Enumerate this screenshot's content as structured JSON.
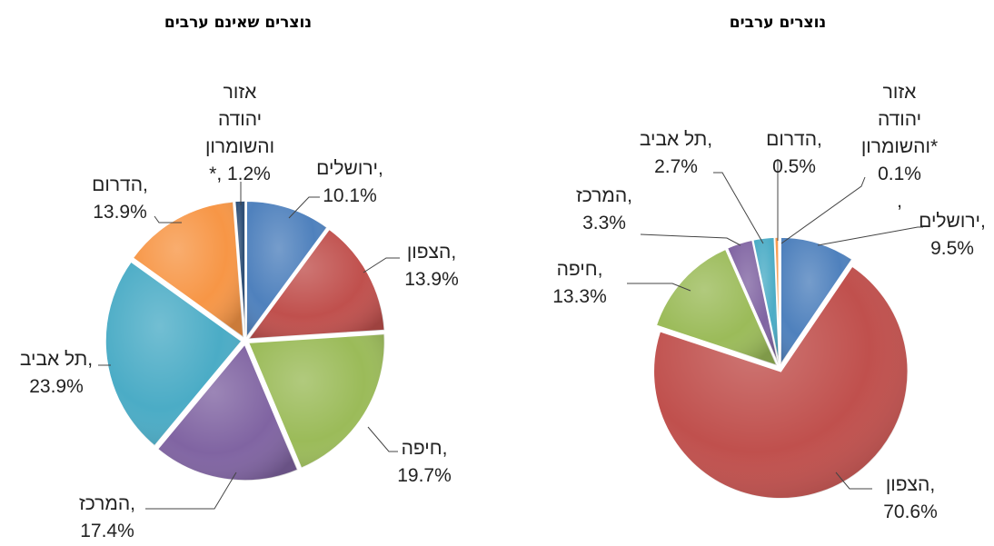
{
  "chart_data": [
    {
      "type": "pie",
      "title": "נוצרים שאינם ערבים",
      "slices": [
        {
          "name": "ירושלים",
          "value": 10.1,
          "label": [
            "ירושלים,",
            "10.1%"
          ],
          "color": "#4f81bd"
        },
        {
          "name": "הצפון",
          "value": 13.9,
          "label": [
            "הצפון,",
            "13.9%"
          ],
          "color": "#c0504d"
        },
        {
          "name": "חיפה",
          "value": 19.7,
          "label": [
            "חיפה,",
            "19.7%"
          ],
          "color": "#9bbb59"
        },
        {
          "name": "המרכז",
          "value": 17.4,
          "label": [
            "המרכז,",
            "17.4%"
          ],
          "color": "#8064a2"
        },
        {
          "name": "תל אביב",
          "value": 23.9,
          "label": [
            "תל אביב,",
            "23.9%"
          ],
          "color": "#4bacc6"
        },
        {
          "name": "הדרום",
          "value": 13.9,
          "label": [
            "הדרום,",
            "13.9%"
          ],
          "color": "#f79646"
        },
        {
          "name": "אזור יהודה והשומרון*",
          "value": 1.2,
          "label": [
            "אזור",
            "יהודה",
            "והשומרון",
            "*, 1.2%"
          ],
          "color": "#2c4d75"
        }
      ]
    },
    {
      "type": "pie",
      "title": "נוצרים ערבים",
      "slices": [
        {
          "name": "ירושלים",
          "value": 9.5,
          "label": [
            "ירושלים,",
            "9.5%"
          ],
          "color": "#4f81bd"
        },
        {
          "name": "הצפון",
          "value": 70.6,
          "label": [
            "הצפון,",
            "70.6%"
          ],
          "color": "#c0504d"
        },
        {
          "name": "חיפה",
          "value": 13.3,
          "label": [
            "חיפה,",
            "13.3%"
          ],
          "color": "#9bbb59"
        },
        {
          "name": "המרכז",
          "value": 3.3,
          "label": [
            "המרכז,",
            "3.3%"
          ],
          "color": "#8064a2"
        },
        {
          "name": "תל אביב",
          "value": 2.7,
          "label": [
            "תל אביב,",
            "2.7%"
          ],
          "color": "#4bacc6"
        },
        {
          "name": "הדרום",
          "value": 0.5,
          "label": [
            "הדרום,",
            "0.5%"
          ],
          "color": "#f79646"
        },
        {
          "name": "אזור יהודה והשומרון*",
          "value": 0.1,
          "label": [
            "אזור",
            "יהודה",
            "והשומרון*",
            "0.1%",
            ","
          ],
          "color": "#2c4d75"
        }
      ]
    }
  ]
}
